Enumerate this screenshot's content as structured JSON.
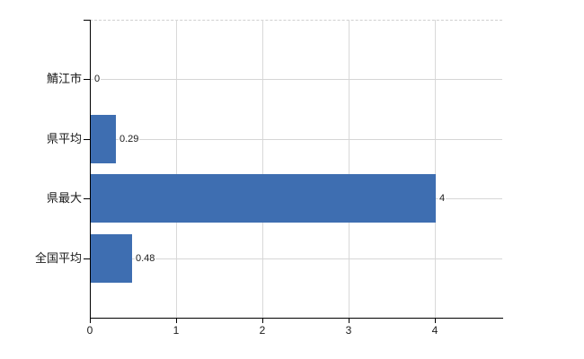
{
  "chart_data": {
    "type": "bar",
    "orientation": "horizontal",
    "categories": [
      "鯖江市",
      "県平均",
      "県最大",
      "全国平均"
    ],
    "values": [
      0,
      0.29,
      4,
      0.48
    ],
    "value_labels": [
      "0",
      "0.29",
      "4",
      "0.48"
    ],
    "x_tick_labels": [
      "0",
      "1",
      "2",
      "3",
      "4"
    ],
    "x_tick_values": [
      0,
      1,
      2,
      3,
      4
    ],
    "xlim": [
      0,
      4.78
    ],
    "grid": true,
    "legend": "none",
    "bar_color": "#3e6eb1"
  },
  "colors": {
    "bar": "#3e6eb1",
    "gridline_vertical": "#d9d9d9",
    "gridline_horizontal": "#d6d6d6",
    "top_border_dashed": "#d0d0d0",
    "axis": "#000000",
    "text": "#1a1a1a",
    "background": "#ffffff"
  }
}
